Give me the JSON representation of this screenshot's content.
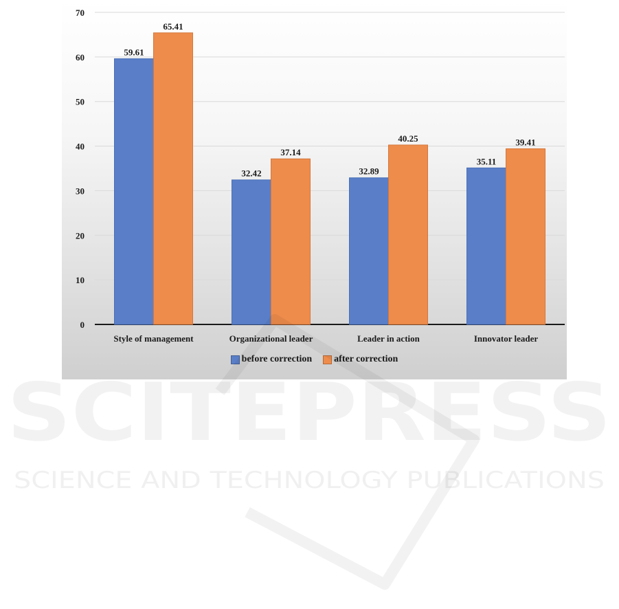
{
  "chart_data": {
    "type": "bar",
    "categories": [
      "Style of management",
      "Organizational leader",
      "Leader in action",
      "Innovator leader"
    ],
    "series": [
      {
        "name": "before correction",
        "values": [
          59.61,
          32.42,
          32.89,
          35.11
        ],
        "color": "#5a7fc8"
      },
      {
        "name": "after correction",
        "values": [
          65.41,
          37.14,
          40.25,
          39.41
        ],
        "color": "#ee8c4b"
      }
    ],
    "ylim": [
      0,
      70
    ],
    "yticks": [
      0,
      10,
      20,
      30,
      40,
      50,
      60,
      70
    ],
    "grid": true,
    "legend_position": "bottom",
    "title": "",
    "xlabel": "",
    "ylabel": ""
  },
  "watermark": {
    "wordmark": "SCITEPRESS",
    "tagline": "SCIENCE AND TECHNOLOGY PUBLICATIONS"
  }
}
